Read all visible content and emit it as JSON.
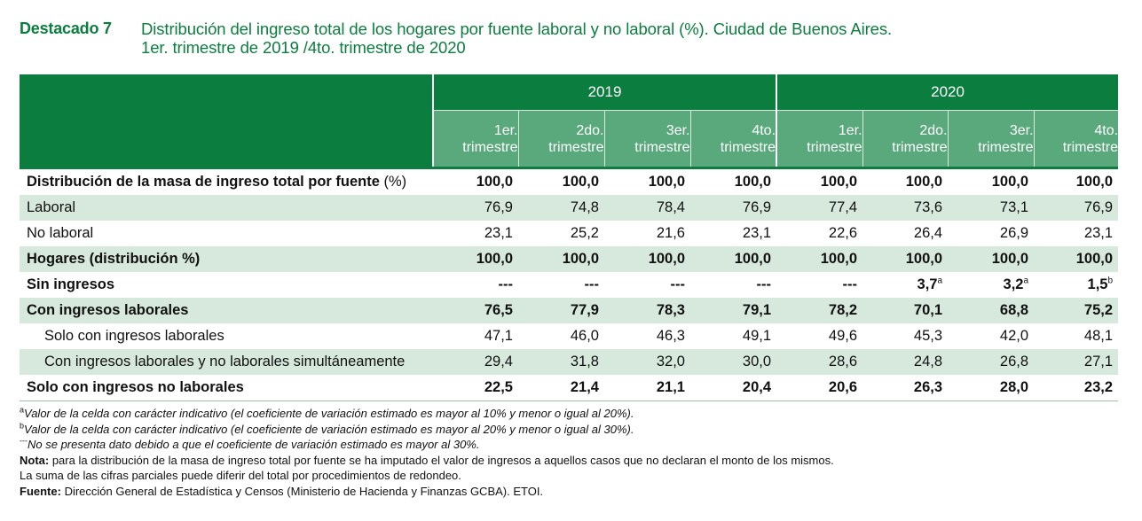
{
  "header": {
    "tag": "Destacado 7",
    "title_line1": "Distribución del ingreso total de los hogares por fuente laboral y no laboral (%). Ciudad de Buenos Aires.",
    "title_line2": "1er. trimestre de 2019 /4to. trimestre de 2020"
  },
  "table": {
    "years": [
      "2019",
      "2020"
    ],
    "quarters": [
      [
        "1er.",
        "trimestre"
      ],
      [
        "2do.",
        "trimestre"
      ],
      [
        "3er.",
        "trimestre"
      ],
      [
        "4to.",
        "trimestre"
      ],
      [
        "1er.",
        "trimestre"
      ],
      [
        "2do.",
        "trimestre"
      ],
      [
        "3er.",
        "trimestre"
      ],
      [
        "4to.",
        "trimestre"
      ]
    ],
    "rows": [
      {
        "label": "Distribución de la masa de ingreso total por fuente",
        "label_suffix": " (%)",
        "bold": true,
        "shade": false,
        "indent": false,
        "values": [
          "100,0",
          "100,0",
          "100,0",
          "100,0",
          "100,0",
          "100,0",
          "100,0",
          "100,0"
        ],
        "notes": [
          "",
          "",
          "",
          "",
          "",
          "",
          "",
          ""
        ]
      },
      {
        "label": "Laboral",
        "label_suffix": "",
        "bold": false,
        "shade": true,
        "indent": false,
        "values": [
          "76,9",
          "74,8",
          "78,4",
          "76,9",
          "77,4",
          "73,6",
          "73,1",
          "76,9"
        ],
        "notes": [
          "",
          "",
          "",
          "",
          "",
          "",
          "",
          ""
        ]
      },
      {
        "label": "No laboral",
        "label_suffix": "",
        "bold": false,
        "shade": false,
        "indent": false,
        "values": [
          "23,1",
          "25,2",
          "21,6",
          "23,1",
          "22,6",
          "26,4",
          "26,9",
          "23,1"
        ],
        "notes": [
          "",
          "",
          "",
          "",
          "",
          "",
          "",
          ""
        ]
      },
      {
        "label": "Hogares (distribución %)",
        "label_suffix": "",
        "bold": true,
        "shade": true,
        "indent": false,
        "values": [
          "100,0",
          "100,0",
          "100,0",
          "100,0",
          "100,0",
          "100,0",
          "100,0",
          "100,0"
        ],
        "notes": [
          "",
          "",
          "",
          "",
          "",
          "",
          "",
          ""
        ]
      },
      {
        "label": "Sin ingresos",
        "label_suffix": "",
        "bold": true,
        "shade": false,
        "indent": false,
        "values": [
          "---",
          "---",
          "---",
          "---",
          "---",
          "3,7",
          "3,2",
          "1,5"
        ],
        "notes": [
          "",
          "",
          "",
          "",
          "",
          "a",
          "a",
          "b"
        ]
      },
      {
        "label": "Con ingresos laborales",
        "label_suffix": "",
        "bold": true,
        "shade": true,
        "indent": false,
        "values": [
          "76,5",
          "77,9",
          "78,3",
          "79,1",
          "78,2",
          "70,1",
          "68,8",
          "75,2"
        ],
        "notes": [
          "",
          "",
          "",
          "",
          "",
          "",
          "",
          ""
        ]
      },
      {
        "label": "Solo con ingresos laborales",
        "label_suffix": "",
        "bold": false,
        "shade": false,
        "indent": true,
        "values": [
          "47,1",
          "46,0",
          "46,3",
          "49,1",
          "49,6",
          "45,3",
          "42,0",
          "48,1"
        ],
        "notes": [
          "",
          "",
          "",
          "",
          "",
          "",
          "",
          ""
        ]
      },
      {
        "label": "Con ingresos laborales y no laborales simultáneamente",
        "label_suffix": "",
        "bold": false,
        "shade": true,
        "indent": true,
        "values": [
          "29,4",
          "31,8",
          "32,0",
          "30,0",
          "28,6",
          "24,8",
          "26,8",
          "27,1"
        ],
        "notes": [
          "",
          "",
          "",
          "",
          "",
          "",
          "",
          ""
        ]
      },
      {
        "label": "Solo con ingresos no laborales",
        "label_suffix": "",
        "bold": true,
        "shade": false,
        "indent": false,
        "values": [
          "22,5",
          "21,4",
          "21,1",
          "20,4",
          "20,6",
          "26,3",
          "28,0",
          "23,2"
        ],
        "notes": [
          "",
          "",
          "",
          "",
          "",
          "",
          "",
          ""
        ]
      }
    ]
  },
  "notes": {
    "a_mark": "a",
    "a_text": "Valor de la celda con carácter indicativo (el coeficiente de variación estimado es mayor al 10% y menor o igual al 20%).",
    "b_mark": "b",
    "b_text": "Valor de la celda con carácter indicativo (el coeficiente de variación estimado es mayor al 20% y menor o igual al 30%).",
    "dash_mark": "---",
    "dash_text": "No se presenta dato debido a que el coeficiente de variación estimado es mayor al 30%.",
    "nota_label": "Nota:",
    "nota_text": " para la distribución de la masa de ingreso total por fuente se ha imputado el valor de ingresos a aquellos casos que no declaran el monto de los mismos.",
    "suma_text": "La suma de las cifras parciales puede diferir del total por procedimientos de redondeo.",
    "fuente_label": "Fuente:",
    "fuente_text": " Dirección General de Estadística y Censos (Ministerio de Hacienda y Finanzas GCBA). ETOI."
  },
  "colors": {
    "brand_green": "#0b7d3e",
    "header_sub": "#59a97c",
    "row_shade": "#d7e9dd"
  }
}
